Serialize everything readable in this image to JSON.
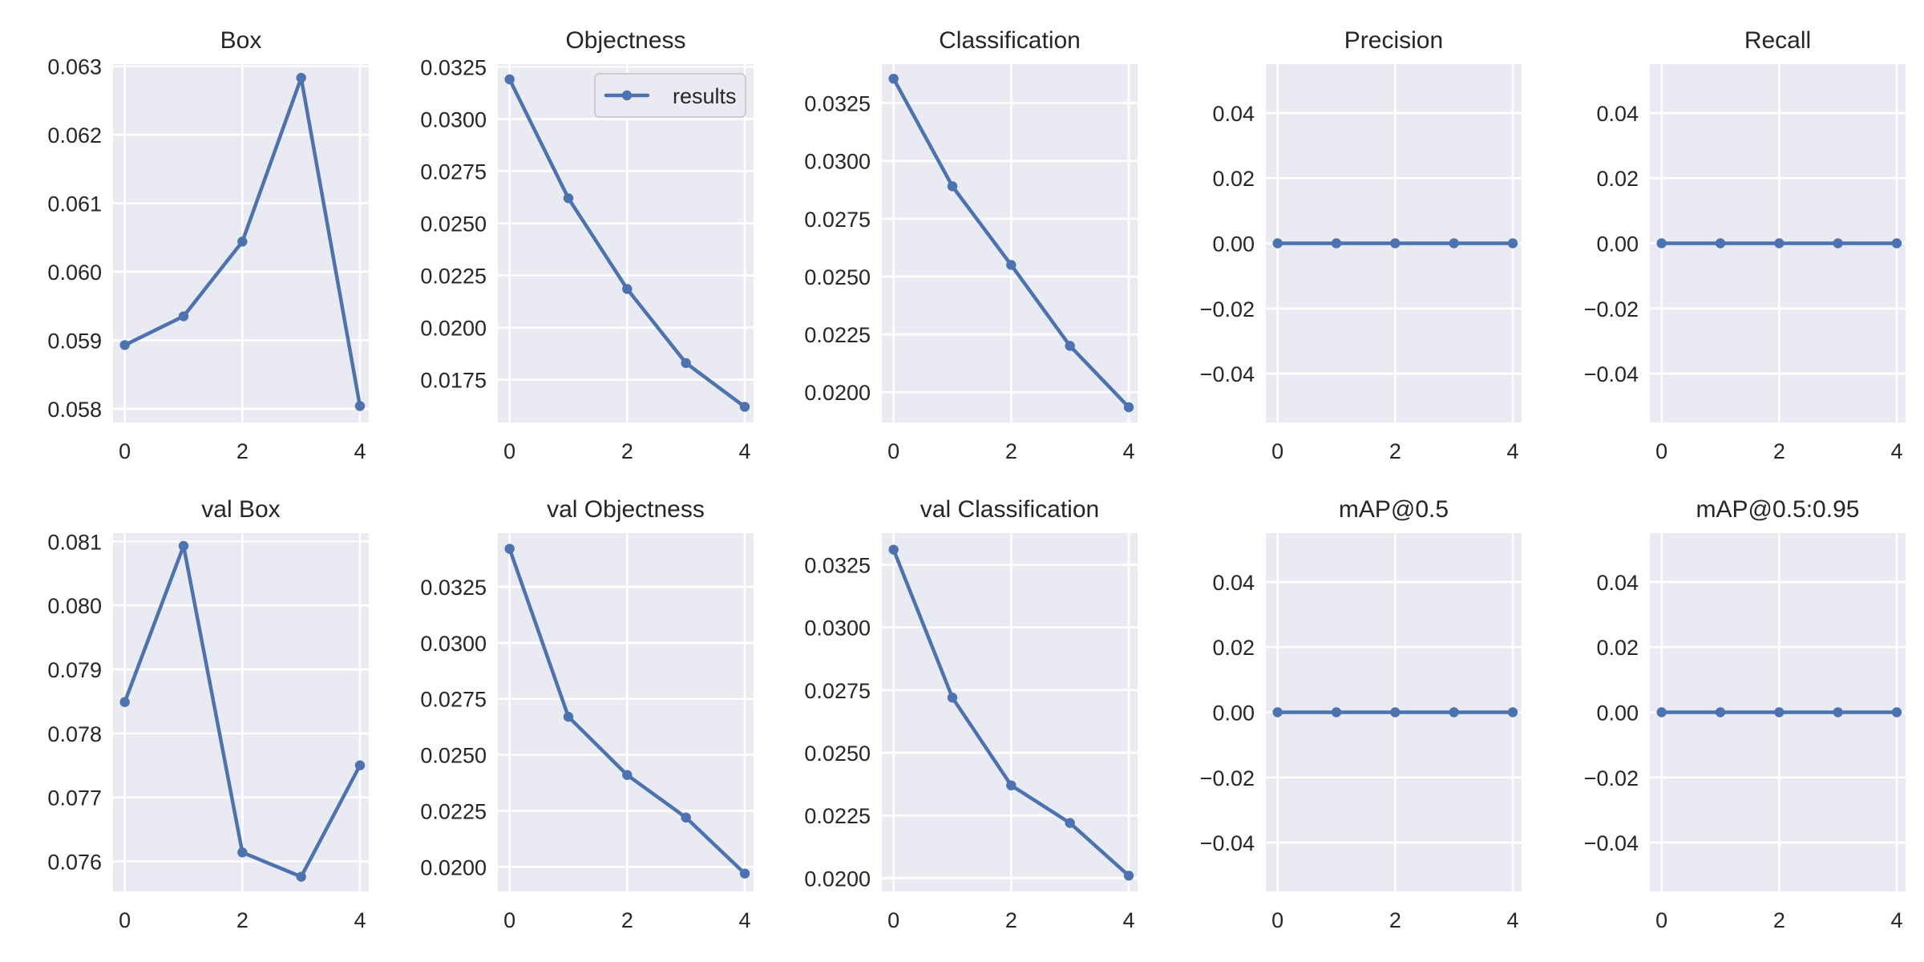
{
  "chart_data": [
    {
      "type": "line",
      "title": "Box",
      "x": [
        0,
        1,
        2,
        3,
        4
      ],
      "series": [
        {
          "name": "results",
          "values": [
            0.05893,
            0.05935,
            0.06044,
            0.06283,
            0.05804
          ]
        }
      ],
      "xlim": [
        -0.2,
        4.15
      ],
      "ylim": [
        0.0578,
        0.06303
      ],
      "xticks": [
        0,
        2,
        4
      ],
      "xtick_labels": [
        "0",
        "2",
        "4"
      ],
      "yticks": [
        0.058,
        0.059,
        0.06,
        0.061,
        0.062,
        0.063
      ],
      "ytick_labels": [
        "0.058",
        "0.059",
        "0.060",
        "0.061",
        "0.062",
        "0.063"
      ],
      "grid": true
    },
    {
      "type": "line",
      "title": "Objectness",
      "x": [
        0,
        1,
        2,
        3,
        4
      ],
      "series": [
        {
          "name": "results",
          "values": [
            0.0319,
            0.0262,
            0.02185,
            0.0183,
            0.0162
          ]
        }
      ],
      "xlim": [
        -0.2,
        4.15
      ],
      "ylim": [
        0.01545,
        0.03263
      ],
      "xticks": [
        0,
        2,
        4
      ],
      "xtick_labels": [
        "0",
        "2",
        "4"
      ],
      "yticks": [
        0.0175,
        0.02,
        0.0225,
        0.025,
        0.0275,
        0.03,
        0.0325
      ],
      "ytick_labels": [
        "0.0175",
        "0.0200",
        "0.0225",
        "0.0250",
        "0.0275",
        "0.0300",
        "0.0325"
      ],
      "grid": true,
      "legend": {
        "entries": [
          "results"
        ],
        "position": "upper right"
      }
    },
    {
      "type": "line",
      "title": "Classification",
      "x": [
        0,
        1,
        2,
        3,
        4
      ],
      "series": [
        {
          "name": "results",
          "values": [
            0.03355,
            0.0289,
            0.0255,
            0.022,
            0.01935
          ]
        }
      ],
      "xlim": [
        -0.2,
        4.15
      ],
      "ylim": [
        0.01869,
        0.03418
      ],
      "xticks": [
        0,
        2,
        4
      ],
      "xtick_labels": [
        "0",
        "2",
        "4"
      ],
      "yticks": [
        0.02,
        0.0225,
        0.025,
        0.0275,
        0.03,
        0.0325
      ],
      "ytick_labels": [
        "0.0200",
        "0.0225",
        "0.0250",
        "0.0275",
        "0.0300",
        "0.0325"
      ],
      "grid": true
    },
    {
      "type": "line",
      "title": "Precision",
      "x": [
        0,
        1,
        2,
        3,
        4
      ],
      "series": [
        {
          "name": "results",
          "values": [
            0,
            0,
            0,
            0,
            0
          ]
        }
      ],
      "xlim": [
        -0.2,
        4.15
      ],
      "ylim": [
        -0.055,
        0.055
      ],
      "xticks": [
        0,
        2,
        4
      ],
      "xtick_labels": [
        "0",
        "2",
        "4"
      ],
      "yticks": [
        -0.04,
        -0.02,
        0,
        0.02,
        0.04
      ],
      "ytick_labels": [
        "−0.04",
        "−0.02",
        "0.00",
        "0.02",
        "0.04"
      ],
      "grid": true
    },
    {
      "type": "line",
      "title": "Recall",
      "x": [
        0,
        1,
        2,
        3,
        4
      ],
      "series": [
        {
          "name": "results",
          "values": [
            0,
            0,
            0,
            0,
            0
          ]
        }
      ],
      "xlim": [
        -0.2,
        4.15
      ],
      "ylim": [
        -0.055,
        0.055
      ],
      "xticks": [
        0,
        2,
        4
      ],
      "xtick_labels": [
        "0",
        "2",
        "4"
      ],
      "yticks": [
        -0.04,
        -0.02,
        0,
        0.02,
        0.04
      ],
      "ytick_labels": [
        "−0.04",
        "−0.02",
        "0.00",
        "0.02",
        "0.04"
      ],
      "grid": true
    },
    {
      "type": "line",
      "title": "val Box",
      "x": [
        0,
        1,
        2,
        3,
        4
      ],
      "series": [
        {
          "name": "results",
          "values": [
            0.07849,
            0.08093,
            0.07614,
            0.07576,
            0.0775
          ]
        }
      ],
      "xlim": [
        -0.2,
        4.15
      ],
      "ylim": [
        0.07553,
        0.08113
      ],
      "xticks": [
        0,
        2,
        4
      ],
      "xtick_labels": [
        "0",
        "2",
        "4"
      ],
      "yticks": [
        0.076,
        0.077,
        0.078,
        0.079,
        0.08,
        0.081
      ],
      "ytick_labels": [
        "0.076",
        "0.077",
        "0.078",
        "0.079",
        "0.080",
        "0.081"
      ],
      "grid": true
    },
    {
      "type": "line",
      "title": "val Objectness",
      "x": [
        0,
        1,
        2,
        3,
        4
      ],
      "series": [
        {
          "name": "results",
          "values": [
            0.0342,
            0.0267,
            0.0241,
            0.0222,
            0.0197
          ]
        }
      ],
      "xlim": [
        -0.2,
        4.15
      ],
      "ylim": [
        0.0189,
        0.0349
      ],
      "xticks": [
        0,
        2,
        4
      ],
      "xtick_labels": [
        "0",
        "2",
        "4"
      ],
      "yticks": [
        0.02,
        0.0225,
        0.025,
        0.0275,
        0.03,
        0.0325
      ],
      "ytick_labels": [
        "0.0200",
        "0.0225",
        "0.0250",
        "0.0275",
        "0.0300",
        "0.0325"
      ],
      "grid": true
    },
    {
      "type": "line",
      "title": "val Classification",
      "x": [
        0,
        1,
        2,
        3,
        4
      ],
      "series": [
        {
          "name": "results",
          "values": [
            0.0331,
            0.0272,
            0.0237,
            0.0222,
            0.0201
          ]
        }
      ],
      "xlim": [
        -0.2,
        4.15
      ],
      "ylim": [
        0.01947,
        0.03376
      ],
      "xticks": [
        0,
        2,
        4
      ],
      "xtick_labels": [
        "0",
        "2",
        "4"
      ],
      "yticks": [
        0.02,
        0.0225,
        0.025,
        0.0275,
        0.03,
        0.0325
      ],
      "ytick_labels": [
        "0.0200",
        "0.0225",
        "0.0250",
        "0.0275",
        "0.0300",
        "0.0325"
      ],
      "grid": true
    },
    {
      "type": "line",
      "title": "mAP@0.5",
      "x": [
        0,
        1,
        2,
        3,
        4
      ],
      "series": [
        {
          "name": "results",
          "values": [
            0,
            0,
            0,
            0,
            0
          ]
        }
      ],
      "xlim": [
        -0.2,
        4.15
      ],
      "ylim": [
        -0.055,
        0.055
      ],
      "xticks": [
        0,
        2,
        4
      ],
      "xtick_labels": [
        "0",
        "2",
        "4"
      ],
      "yticks": [
        -0.04,
        -0.02,
        0,
        0.02,
        0.04
      ],
      "ytick_labels": [
        "−0.04",
        "−0.02",
        "0.00",
        "0.02",
        "0.04"
      ],
      "grid": true
    },
    {
      "type": "line",
      "title": "mAP@0.5:0.95",
      "x": [
        0,
        1,
        2,
        3,
        4
      ],
      "series": [
        {
          "name": "results",
          "values": [
            0,
            0,
            0,
            0,
            0
          ]
        }
      ],
      "xlim": [
        -0.2,
        4.15
      ],
      "ylim": [
        -0.055,
        0.055
      ],
      "xticks": [
        0,
        2,
        4
      ],
      "xtick_labels": [
        "0",
        "2",
        "4"
      ],
      "yticks": [
        -0.04,
        -0.02,
        0,
        0.02,
        0.04
      ],
      "ytick_labels": [
        "−0.04",
        "−0.02",
        "0.00",
        "0.02",
        "0.04"
      ],
      "grid": true
    }
  ]
}
